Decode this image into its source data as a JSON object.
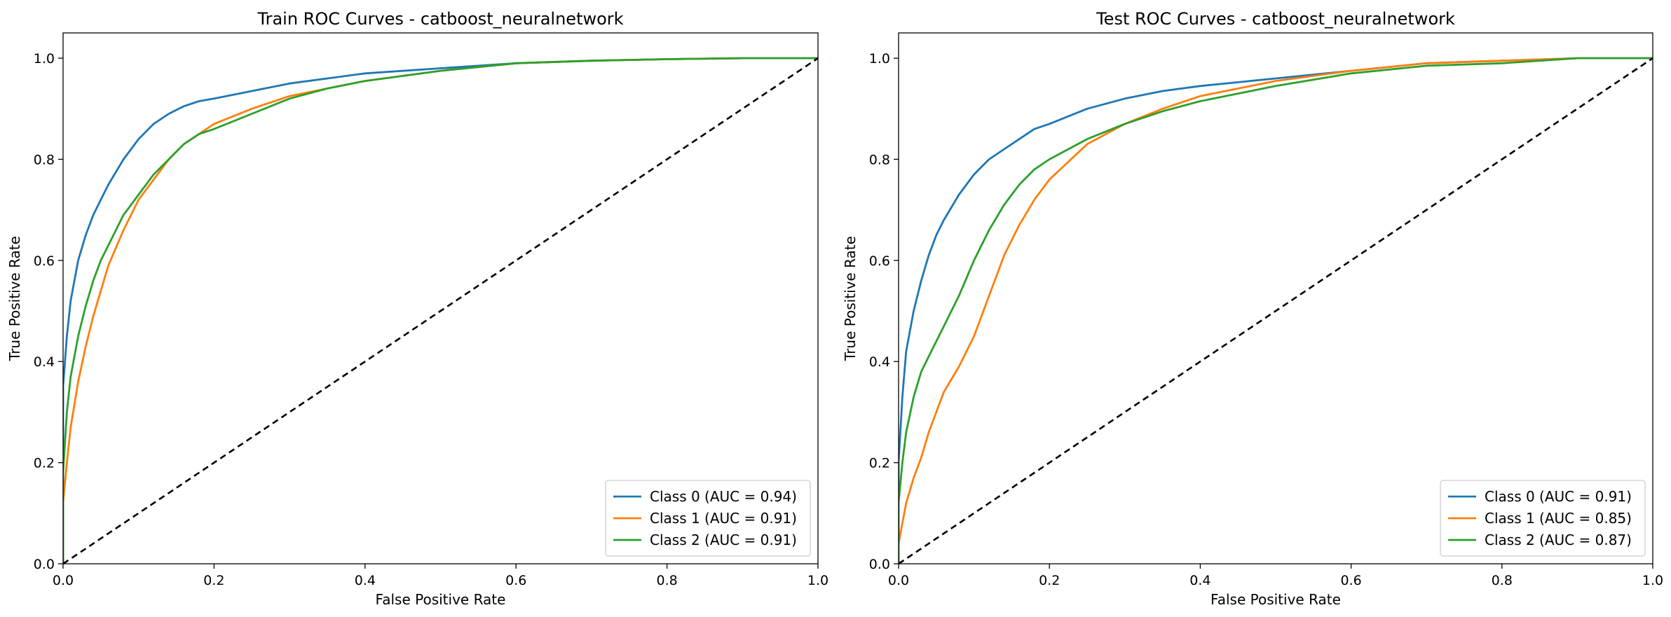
{
  "chart_data": [
    {
      "type": "line",
      "title": "Train ROC Curves - catboost_neuralnetwork",
      "xlabel": "False Positive Rate",
      "ylabel": "True Positive Rate",
      "xlim": [
        0.0,
        1.0
      ],
      "ylim": [
        0.0,
        1.05
      ],
      "xticks": [
        "0.0",
        "0.2",
        "0.4",
        "0.6",
        "0.8",
        "1.0"
      ],
      "yticks": [
        "0.0",
        "0.2",
        "0.4",
        "0.6",
        "0.8",
        "1.0"
      ],
      "grid": false,
      "legend_position": "lower-right",
      "series": [
        {
          "name": "Class 0 (AUC = 0.94)",
          "color": "#1f77b4",
          "x": [
            0,
            0.0,
            0.005,
            0.01,
            0.02,
            0.03,
            0.04,
            0.05,
            0.06,
            0.08,
            0.1,
            0.12,
            0.14,
            0.16,
            0.18,
            0.2,
            0.25,
            0.3,
            0.35,
            0.4,
            0.5,
            0.6,
            0.7,
            0.8,
            0.9,
            1.0
          ],
          "y": [
            0,
            0.35,
            0.45,
            0.52,
            0.6,
            0.65,
            0.69,
            0.72,
            0.75,
            0.8,
            0.84,
            0.87,
            0.89,
            0.905,
            0.915,
            0.92,
            0.935,
            0.95,
            0.96,
            0.97,
            0.98,
            0.99,
            0.995,
            0.998,
            1.0,
            1.0
          ]
        },
        {
          "name": "Class 1 (AUC = 0.91)",
          "color": "#ff7f0e",
          "x": [
            0,
            0.0,
            0.005,
            0.01,
            0.02,
            0.03,
            0.04,
            0.05,
            0.06,
            0.08,
            0.1,
            0.12,
            0.14,
            0.16,
            0.18,
            0.2,
            0.25,
            0.3,
            0.35,
            0.4,
            0.5,
            0.6,
            0.7,
            0.8,
            0.9,
            1.0
          ],
          "y": [
            0,
            0.12,
            0.2,
            0.27,
            0.36,
            0.43,
            0.49,
            0.54,
            0.59,
            0.66,
            0.72,
            0.76,
            0.8,
            0.83,
            0.85,
            0.87,
            0.9,
            0.925,
            0.94,
            0.955,
            0.975,
            0.99,
            0.995,
            0.998,
            1.0,
            1.0
          ]
        },
        {
          "name": "Class 2 (AUC = 0.91)",
          "color": "#2ca02c",
          "x": [
            0,
            0.0,
            0.005,
            0.01,
            0.02,
            0.03,
            0.04,
            0.05,
            0.06,
            0.08,
            0.1,
            0.12,
            0.14,
            0.16,
            0.18,
            0.2,
            0.25,
            0.3,
            0.35,
            0.4,
            0.5,
            0.6,
            0.7,
            0.8,
            0.9,
            1.0
          ],
          "y": [
            0,
            0.18,
            0.3,
            0.37,
            0.45,
            0.51,
            0.56,
            0.6,
            0.63,
            0.69,
            0.73,
            0.77,
            0.8,
            0.83,
            0.85,
            0.86,
            0.89,
            0.92,
            0.94,
            0.955,
            0.975,
            0.99,
            0.995,
            0.998,
            1.0,
            1.0
          ]
        },
        {
          "name": "",
          "color": "#000000",
          "dashed": true,
          "x": [
            0,
            1
          ],
          "y": [
            0,
            1
          ]
        }
      ]
    },
    {
      "type": "line",
      "title": "Test ROC Curves - catboost_neuralnetwork",
      "xlabel": "False Positive Rate",
      "ylabel": "True Positive Rate",
      "xlim": [
        0.0,
        1.0
      ],
      "ylim": [
        0.0,
        1.05
      ],
      "xticks": [
        "0.0",
        "0.2",
        "0.4",
        "0.6",
        "0.8",
        "1.0"
      ],
      "yticks": [
        "0.0",
        "0.2",
        "0.4",
        "0.6",
        "0.8",
        "1.0"
      ],
      "grid": false,
      "legend_position": "lower-right",
      "series": [
        {
          "name": "Class 0 (AUC = 0.91)",
          "color": "#1f77b4",
          "x": [
            0,
            0.0,
            0.005,
            0.01,
            0.02,
            0.03,
            0.04,
            0.05,
            0.06,
            0.08,
            0.1,
            0.12,
            0.14,
            0.16,
            0.18,
            0.2,
            0.25,
            0.3,
            0.35,
            0.4,
            0.5,
            0.6,
            0.7,
            0.8,
            0.9,
            1.0
          ],
          "y": [
            0,
            0.2,
            0.33,
            0.42,
            0.5,
            0.56,
            0.61,
            0.65,
            0.68,
            0.73,
            0.77,
            0.8,
            0.82,
            0.84,
            0.86,
            0.87,
            0.9,
            0.92,
            0.935,
            0.945,
            0.96,
            0.975,
            0.99,
            0.995,
            1.0,
            1.0
          ]
        },
        {
          "name": "Class 1 (AUC = 0.85)",
          "color": "#ff7f0e",
          "x": [
            0,
            0.0,
            0.005,
            0.01,
            0.02,
            0.03,
            0.04,
            0.05,
            0.06,
            0.08,
            0.1,
            0.12,
            0.14,
            0.16,
            0.18,
            0.2,
            0.25,
            0.3,
            0.35,
            0.4,
            0.5,
            0.6,
            0.7,
            0.8,
            0.9,
            1.0
          ],
          "y": [
            0,
            0.04,
            0.08,
            0.12,
            0.17,
            0.21,
            0.26,
            0.3,
            0.34,
            0.39,
            0.45,
            0.53,
            0.61,
            0.67,
            0.72,
            0.76,
            0.83,
            0.87,
            0.9,
            0.925,
            0.955,
            0.975,
            0.99,
            0.995,
            1.0,
            1.0
          ]
        },
        {
          "name": "Class 2 (AUC = 0.87)",
          "color": "#2ca02c",
          "x": [
            0,
            0.0,
            0.005,
            0.01,
            0.02,
            0.03,
            0.04,
            0.05,
            0.06,
            0.08,
            0.1,
            0.12,
            0.14,
            0.16,
            0.18,
            0.2,
            0.25,
            0.3,
            0.35,
            0.4,
            0.5,
            0.6,
            0.7,
            0.8,
            0.9,
            1.0
          ],
          "y": [
            0,
            0.12,
            0.2,
            0.26,
            0.33,
            0.38,
            0.41,
            0.44,
            0.47,
            0.53,
            0.6,
            0.66,
            0.71,
            0.75,
            0.78,
            0.8,
            0.84,
            0.87,
            0.895,
            0.915,
            0.945,
            0.97,
            0.985,
            0.99,
            1.0,
            1.0
          ]
        },
        {
          "name": "",
          "color": "#000000",
          "dashed": true,
          "x": [
            0,
            1
          ],
          "y": [
            0,
            1
          ]
        }
      ]
    }
  ]
}
